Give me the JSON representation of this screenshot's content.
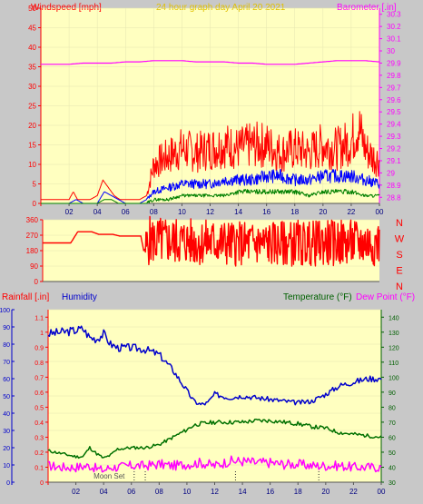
{
  "header": {
    "left_title": "Windspeed [mph]",
    "center_title": "24 hour graph day   April 20 2021",
    "right_title": "Barometer [.in]"
  },
  "colors": {
    "plot_bg": "#ffffc0",
    "page_bg": "#c8c8c8",
    "axis_red": "#ff0000",
    "axis_magenta": "#ff00ff",
    "gust": "#ff0000",
    "wind": "#0000ff",
    "wind_min": "#008000",
    "barometer": "#ff00ff",
    "direction": "#ff0000",
    "humidity": "#0000cc",
    "temperature": "#007000",
    "dew_point": "#ff00ff",
    "center_title": "#e0c000",
    "label_green": "#006000",
    "label_blue": "#0000cc"
  },
  "chart_data": [
    {
      "type": "line",
      "name": "wind",
      "x_ticks": [
        "02",
        "04",
        "06",
        "08",
        "10",
        "12",
        "14",
        "16",
        "18",
        "20",
        "22",
        "00"
      ],
      "x_range": [
        0,
        24
      ],
      "y_left_ticks": [
        "0",
        "5",
        "10",
        "15",
        "20",
        "25",
        "30",
        "35",
        "40",
        "45",
        "50"
      ],
      "ylim_left": [
        0,
        50
      ],
      "y_right_ticks": [
        "28.8",
        "28.9",
        "29",
        "29.1",
        "29.2",
        "29.3",
        "29.4",
        "29.5",
        "29.6",
        "29.7",
        "29.8",
        "29.9",
        "30",
        "30.1",
        "30.2",
        "30.3"
      ],
      "ylim_right": [
        28.75,
        30.35
      ],
      "series": [
        {
          "name": "Barometer",
          "axis": "right",
          "x": [
            0,
            1,
            2,
            3,
            4,
            5,
            6,
            7,
            8,
            9,
            10,
            11,
            12,
            13,
            14,
            15,
            16,
            17,
            18,
            19,
            20,
            21,
            22,
            23,
            24
          ],
          "values": [
            29.89,
            29.89,
            29.89,
            29.9,
            29.9,
            29.9,
            29.91,
            29.91,
            29.92,
            29.92,
            29.92,
            29.91,
            29.91,
            29.91,
            29.9,
            29.9,
            29.89,
            29.89,
            29.89,
            29.9,
            29.91,
            29.92,
            29.92,
            29.92,
            29.91
          ]
        },
        {
          "name": "Gust",
          "axis": "left",
          "x": [
            0,
            0.5,
            1,
            1.5,
            2,
            2.3,
            2.6,
            3,
            3.5,
            4,
            4.4,
            4.8,
            5.2,
            5.6,
            6,
            6.5,
            7,
            7.5,
            8,
            9,
            10,
            11,
            12,
            13,
            14,
            15,
            16,
            17,
            18,
            19,
            20,
            21,
            22,
            22.5,
            23,
            23.5,
            24
          ],
          "values": [
            1,
            1,
            1,
            1,
            1,
            3,
            1,
            1,
            1,
            2,
            6,
            4,
            2,
            1,
            1,
            1,
            1,
            2,
            10,
            12,
            14,
            13,
            14,
            15,
            14,
            15,
            15,
            13,
            14,
            13,
            15,
            14,
            16,
            20,
            14,
            12,
            11
          ]
        },
        {
          "name": "Wind",
          "axis": "left",
          "x": [
            0,
            2,
            2.5,
            3,
            4,
            4.5,
            5,
            5.5,
            6,
            7,
            7.5,
            8,
            9,
            10,
            11,
            12,
            13,
            14,
            15,
            16,
            17,
            18,
            19,
            20,
            21,
            22,
            23,
            24
          ],
          "values": [
            0,
            0,
            1,
            0,
            0,
            3,
            2,
            1,
            0,
            0,
            1,
            3,
            4,
            5,
            5,
            5,
            6,
            6,
            6,
            7,
            7,
            6,
            6,
            7,
            7,
            7,
            6,
            5
          ]
        },
        {
          "name": "Wind min",
          "axis": "left",
          "x": [
            0,
            4,
            4.5,
            5,
            5.5,
            7,
            7.5,
            8,
            9,
            10,
            11,
            12,
            13,
            14,
            15,
            16,
            17,
            18,
            19,
            20,
            21,
            22,
            23,
            24
          ],
          "values": [
            0,
            0,
            1,
            1,
            0,
            0,
            0,
            1,
            1,
            2,
            2,
            2,
            2,
            3,
            3,
            3,
            3,
            3,
            2,
            3,
            3,
            3,
            2,
            2
          ]
        }
      ]
    },
    {
      "type": "line",
      "name": "direction",
      "x_range": [
        0,
        24
      ],
      "y_ticks": [
        "0",
        "90",
        "180",
        "270",
        "360"
      ],
      "ylim": [
        0,
        360
      ],
      "right_labels": [
        "N",
        "W",
        "S",
        "E",
        "N"
      ],
      "series": [
        {
          "name": "Direction",
          "x": [
            0,
            1.5,
            2,
            2.5,
            3,
            3.5,
            4,
            4.5,
            5,
            5.5,
            6,
            6.5,
            7,
            7.2,
            7.4,
            7.6,
            8,
            9,
            10,
            11,
            12,
            13,
            14,
            15,
            16,
            17,
            18,
            19,
            20,
            21,
            22,
            23,
            24
          ],
          "values": [
            225,
            225,
            225,
            290,
            290,
            290,
            275,
            275,
            275,
            265,
            265,
            265,
            265,
            180,
            200,
            240,
            240,
            235,
            235,
            228,
            230,
            225,
            220,
            222,
            222,
            220,
            225,
            222,
            225,
            225,
            225,
            225,
            230
          ]
        }
      ]
    },
    {
      "type": "line",
      "name": "weather",
      "labels": {
        "rainfall": "Rainfall [.in]",
        "humidity": "Humidity",
        "temperature": "Temperature (°F)",
        "dew_point": "Dew Point (°F)",
        "moon_set": "Moon Set"
      },
      "x_ticks": [
        "02",
        "04",
        "06",
        "08",
        "10",
        "12",
        "14",
        "16",
        "18",
        "20",
        "22",
        "00"
      ],
      "x_range": [
        0,
        24
      ],
      "y_humidity_ticks": [
        "0",
        "10",
        "20",
        "30",
        "40",
        "50",
        "60",
        "70",
        "80",
        "90",
        "100"
      ],
      "y_rain_ticks": [
        "0",
        "0.1",
        "0.2",
        "0.3",
        "0.4",
        "0.5",
        "0.6",
        "0.7",
        "0.8",
        "0.9",
        "1",
        "1.1"
      ],
      "y_temp_ticks": [
        "30",
        "40",
        "50",
        "60",
        "70",
        "80",
        "90",
        "100",
        "110",
        "120",
        "130",
        "140"
      ],
      "ylim_humidity": [
        0,
        100
      ],
      "ylim_temp": [
        30,
        145
      ],
      "series": [
        {
          "name": "Humidity",
          "axis": "humidity",
          "x": [
            0,
            1,
            2,
            2.5,
            3,
            3.5,
            4,
            4.5,
            5,
            6,
            7,
            8,
            9,
            10,
            10.5,
            11,
            11.5,
            12,
            13,
            14,
            15,
            16,
            17,
            18,
            19,
            20,
            21,
            22,
            23,
            24
          ],
          "values": [
            86,
            87,
            88,
            89,
            84,
            83,
            86,
            80,
            78,
            78,
            77,
            74,
            65,
            53,
            47,
            45,
            46,
            51,
            49,
            50,
            49,
            48,
            47,
            46,
            47,
            51,
            56,
            58,
            60,
            60
          ]
        },
        {
          "name": "Temperature",
          "axis": "temp",
          "x": [
            0,
            1,
            2,
            2.5,
            3,
            3.5,
            4,
            4.5,
            5,
            6,
            7,
            8,
            9,
            10,
            10.5,
            11,
            12,
            13,
            14,
            15,
            16,
            17,
            18,
            19,
            20,
            21,
            22,
            23,
            24
          ],
          "values": [
            51,
            49,
            47,
            47,
            53,
            49,
            46,
            48,
            52,
            53,
            53,
            55,
            60,
            65,
            68,
            69,
            70,
            70,
            70,
            71,
            71,
            70,
            69,
            67,
            66,
            63,
            62,
            61,
            60
          ]
        },
        {
          "name": "Dew Point",
          "axis": "temp",
          "x": [
            0,
            1,
            2,
            3,
            3.5,
            4,
            4.5,
            5,
            6,
            7,
            8,
            9,
            10,
            11,
            12,
            13,
            14,
            15,
            16,
            17,
            18,
            19,
            20,
            21,
            22,
            23,
            24
          ],
          "values": [
            41,
            40,
            40,
            41,
            39,
            38,
            40,
            40,
            41,
            41,
            42,
            41,
            42,
            43,
            41,
            44,
            44,
            43,
            43,
            42,
            42,
            41,
            41,
            41,
            40,
            40,
            40
          ]
        }
      ]
    }
  ]
}
